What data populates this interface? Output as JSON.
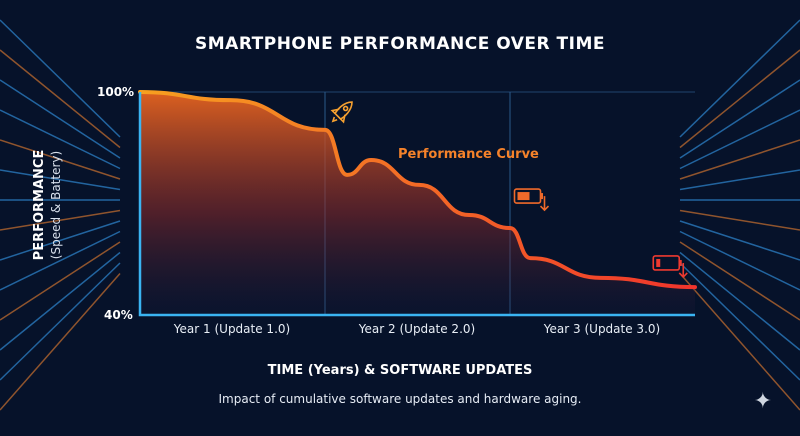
{
  "colors": {
    "background": "#06122a",
    "axis": "#3ab4f2",
    "curve_start": "#f7a020",
    "curve_end": "#f0342c",
    "ray_blue": "#3aa8ff",
    "ray_orange": "#ff8a30"
  },
  "icons": {
    "rocket": "rocket-icon",
    "battery_half": "battery-low-arrow-icon",
    "battery_low": "battery-empty-arrow-icon",
    "sparkle": "sparkle-icon"
  },
  "chart_data": {
    "type": "area",
    "title": "SMARTPHONE PERFORMANCE OVER TIME",
    "xlabel": "TIME (Years) & SOFTWARE UPDATES",
    "ylabel": "PERFORMANCE",
    "ylabel_sub": "(Speed & Battery)",
    "subtitle": "Impact of cumulative software updates and hardware aging.",
    "ylim": [
      40,
      100
    ],
    "xlim": [
      0,
      3
    ],
    "y_ticks": [
      {
        "value": 100,
        "label": "100%"
      },
      {
        "value": 40,
        "label": "40%"
      }
    ],
    "x_ticks": [
      {
        "value": 0.5,
        "label": "Year 1 (Update 1.0)"
      },
      {
        "value": 1.5,
        "label": "Year 2 (Update 2.0)"
      },
      {
        "value": 2.5,
        "label": "Year 3 (Update 3.0)"
      }
    ],
    "dividers": [
      1,
      2
    ],
    "series": [
      {
        "name": "Performance Curve",
        "x": [
          0,
          0.49,
          1.0,
          1.12,
          1.25,
          1.51,
          1.78,
          2.0,
          2.11,
          2.49,
          3.0
        ],
        "values": [
          100,
          97.8,
          89.8,
          77.7,
          81.7,
          75,
          66.9,
          63.4,
          55.3,
          50,
          47.5
        ]
      }
    ],
    "annotations": [
      {
        "icon": "rocket",
        "x": 1.1,
        "y": 95
      },
      {
        "icon": "battery_half",
        "x": 2.1,
        "y": 72
      },
      {
        "icon": "battery_low",
        "x": 2.85,
        "y": 54
      }
    ]
  }
}
